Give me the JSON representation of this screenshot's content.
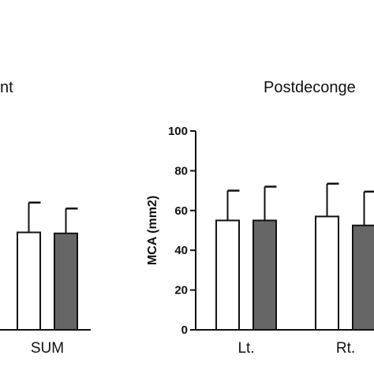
{
  "chart_data": [
    {
      "type": "bar",
      "title": "nt",
      "categories": [
        "SUM"
      ],
      "series": [
        {
          "values": [
            49
          ],
          "errors": [
            15
          ],
          "fill": "#ffffff"
        },
        {
          "values": [
            48.5
          ],
          "errors": [
            12.5
          ],
          "fill": "#666666"
        }
      ],
      "ylim": [
        0,
        100
      ]
    },
    {
      "type": "bar",
      "title": "Postdeconge",
      "ylabel": "MCA (mm2)",
      "categories": [
        "Lt.",
        "Rt."
      ],
      "yticks": [
        "0",
        "20",
        "40",
        "60",
        "80",
        "100"
      ],
      "ylim": [
        0,
        100
      ],
      "series": [
        {
          "values": [
            55,
            57
          ],
          "errors": [
            15,
            16.5
          ],
          "fill": "#ffffff"
        },
        {
          "values": [
            55,
            52.5
          ],
          "errors": [
            17,
            17
          ],
          "fill": "#666666"
        }
      ],
      "grid": false
    }
  ]
}
